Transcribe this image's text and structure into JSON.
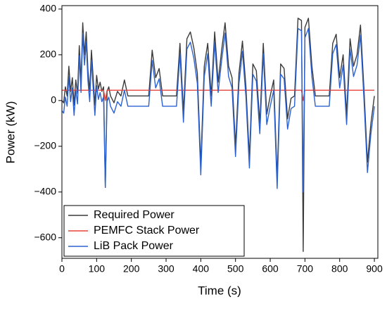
{
  "chart_data": {
    "type": "line",
    "xlabel": "Time (s)",
    "ylabel": "Power (kW)",
    "x": [
      0,
      5,
      10,
      15,
      20,
      25,
      30,
      35,
      40,
      45,
      50,
      55,
      60,
      65,
      70,
      75,
      80,
      85,
      90,
      95,
      100,
      105,
      110,
      115,
      120,
      125,
      130,
      135,
      140,
      150,
      160,
      170,
      180,
      190,
      200,
      250,
      260,
      270,
      280,
      290,
      300,
      310,
      320,
      330,
      340,
      350,
      360,
      370,
      380,
      390,
      400,
      410,
      420,
      430,
      440,
      450,
      460,
      470,
      480,
      490,
      500,
      510,
      520,
      530,
      540,
      550,
      560,
      570,
      580,
      590,
      600,
      610,
      620,
      630,
      640,
      650,
      660,
      670,
      680,
      690,
      695,
      700,
      710,
      720,
      730,
      740,
      750,
      760,
      770,
      780,
      790,
      800,
      810,
      820,
      830,
      840,
      850,
      860,
      870,
      880,
      890,
      900
    ],
    "series": [
      {
        "name": "Required Power",
        "color": "#3a3a3a",
        "values": [
          0,
          -10,
          60,
          20,
          150,
          40,
          100,
          -20,
          90,
          30,
          240,
          80,
          340,
          200,
          300,
          130,
          40,
          220,
          100,
          -20,
          110,
          50,
          80,
          40,
          60,
          -380,
          40,
          60,
          20,
          -10,
          40,
          20,
          90,
          20,
          20,
          20,
          220,
          100,
          140,
          20,
          20,
          20,
          20,
          20,
          250,
          -50,
          270,
          300,
          230,
          120,
          -280,
          150,
          250,
          20,
          300,
          80,
          220,
          340,
          150,
          100,
          -200,
          120,
          260,
          60,
          -250,
          160,
          130,
          -100,
          250,
          -60,
          20,
          90,
          -340,
          160,
          140,
          -80,
          10,
          20,
          360,
          350,
          -660,
          320,
          360,
          150,
          20,
          20,
          20,
          20,
          20,
          250,
          290,
          100,
          200,
          -60,
          270,
          150,
          200,
          330,
          50,
          -270,
          -100,
          20
        ]
      },
      {
        "name": "PEMFC Stack Power",
        "color": "#e8413a",
        "values": [
          45,
          45,
          45,
          45,
          45,
          45,
          45,
          45,
          45,
          45,
          45,
          45,
          45,
          45,
          45,
          45,
          45,
          45,
          45,
          45,
          45,
          45,
          45,
          45,
          45,
          0,
          45,
          45,
          45,
          45,
          45,
          45,
          45,
          45,
          45,
          45,
          45,
          45,
          45,
          45,
          45,
          45,
          45,
          45,
          45,
          45,
          45,
          45,
          45,
          45,
          45,
          45,
          45,
          45,
          45,
          45,
          45,
          45,
          45,
          45,
          45,
          45,
          45,
          45,
          45,
          45,
          45,
          45,
          45,
          45,
          45,
          45,
          45,
          45,
          45,
          45,
          45,
          45,
          45,
          45,
          0,
          45,
          45,
          45,
          45,
          45,
          45,
          45,
          45,
          45,
          45,
          45,
          45,
          45,
          45,
          45,
          45,
          45,
          45,
          45,
          45,
          45
        ]
      },
      {
        "name": "LiB Pack Power",
        "color": "#2b62d0",
        "values": [
          -45,
          -55,
          15,
          -25,
          105,
          -5,
          55,
          -65,
          45,
          -15,
          195,
          35,
          295,
          155,
          255,
          85,
          -5,
          175,
          55,
          -65,
          65,
          5,
          35,
          -5,
          15,
          -380,
          -5,
          15,
          -25,
          -55,
          -5,
          -25,
          45,
          -25,
          -25,
          -25,
          175,
          55,
          95,
          -25,
          -25,
          -25,
          -25,
          -25,
          205,
          -95,
          225,
          255,
          185,
          75,
          -325,
          105,
          205,
          -25,
          255,
          35,
          175,
          295,
          105,
          55,
          -245,
          75,
          215,
          15,
          -295,
          115,
          85,
          -145,
          205,
          -105,
          -25,
          45,
          -385,
          115,
          95,
          -125,
          -35,
          -25,
          315,
          305,
          -400,
          275,
          315,
          105,
          -25,
          -25,
          -25,
          -25,
          -25,
          205,
          245,
          55,
          155,
          -105,
          225,
          105,
          155,
          285,
          5,
          -315,
          -145,
          -25
        ]
      }
    ],
    "xlim": [
      0,
      910
    ],
    "ylim": [
      -690,
      415
    ],
    "xticks": [
      0,
      100,
      200,
      300,
      400,
      500,
      600,
      700,
      800,
      900
    ],
    "yticks": [
      {
        "value": -600,
        "label": "−600"
      },
      {
        "value": -400,
        "label": "−400"
      },
      {
        "value": -200,
        "label": "−200"
      },
      0,
      200,
      400
    ],
    "legend": "lower left"
  }
}
